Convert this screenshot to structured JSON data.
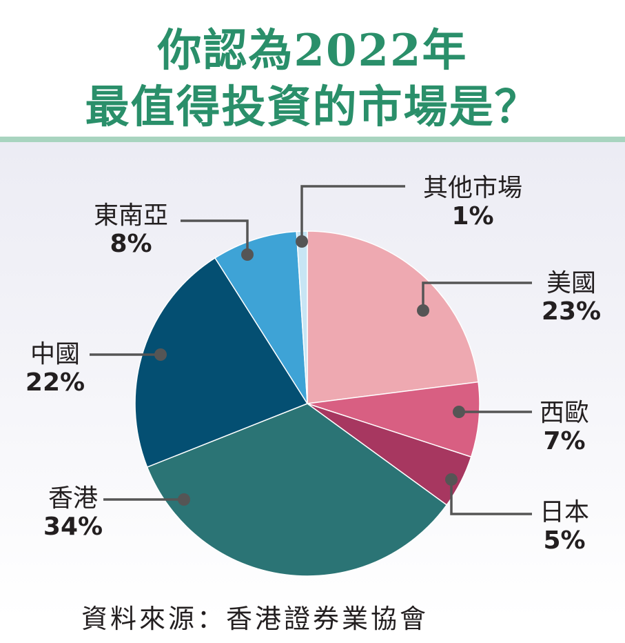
{
  "title": {
    "line1": "你認為2022年",
    "line2": "最值得投資的市場是？"
  },
  "source": "資料來源：香港證券業協會",
  "chart_data": {
    "type": "pie",
    "slices": [
      {
        "label": "美國",
        "value": 23,
        "pct_label": "23%",
        "color": "#eea9b1"
      },
      {
        "label": "西歐",
        "value": 7,
        "pct_label": "7%",
        "color": "#d85f82"
      },
      {
        "label": "日本",
        "value": 5,
        "pct_label": "5%",
        "color": "#a73760"
      },
      {
        "label": "香港",
        "value": 34,
        "pct_label": "34%",
        "color": "#2b7475"
      },
      {
        "label": "中國",
        "value": 22,
        "pct_label": "22%",
        "color": "#044f72"
      },
      {
        "label": "東南亞",
        "value": 8,
        "pct_label": "8%",
        "color": "#3ea3d6"
      },
      {
        "label": "其他市場",
        "value": 1,
        "pct_label": "1%",
        "color": "#c7e5f4"
      }
    ]
  }
}
